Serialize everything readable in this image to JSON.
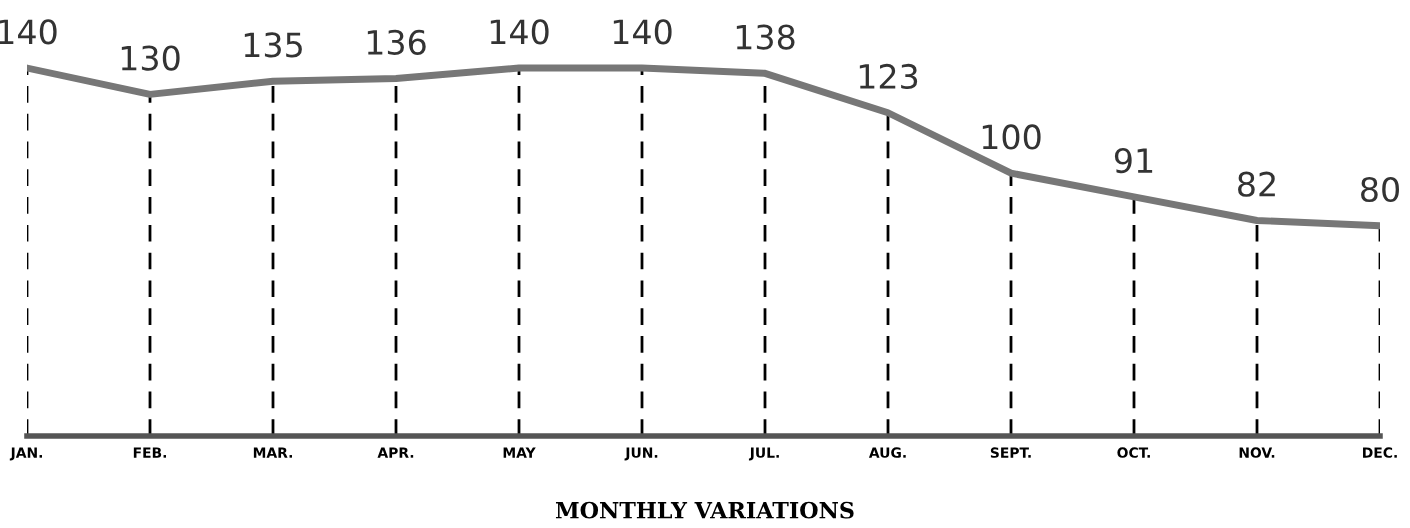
{
  "chart_data": {
    "type": "line",
    "title": "MONTHLY VARIATIONS",
    "categories": [
      "JAN.",
      "FEB.",
      "MAR.",
      "APR.",
      "MAY",
      "JUN.",
      "JUL.",
      "AUG.",
      "SEPT.",
      "OCT.",
      "NOV.",
      "DEC."
    ],
    "values": [
      140,
      130,
      135,
      136,
      140,
      140,
      138,
      123,
      100,
      91,
      82,
      80
    ],
    "color": "#777777",
    "data_labels": true,
    "grid": "x",
    "line_style": "solid",
    "marker": "none"
  }
}
